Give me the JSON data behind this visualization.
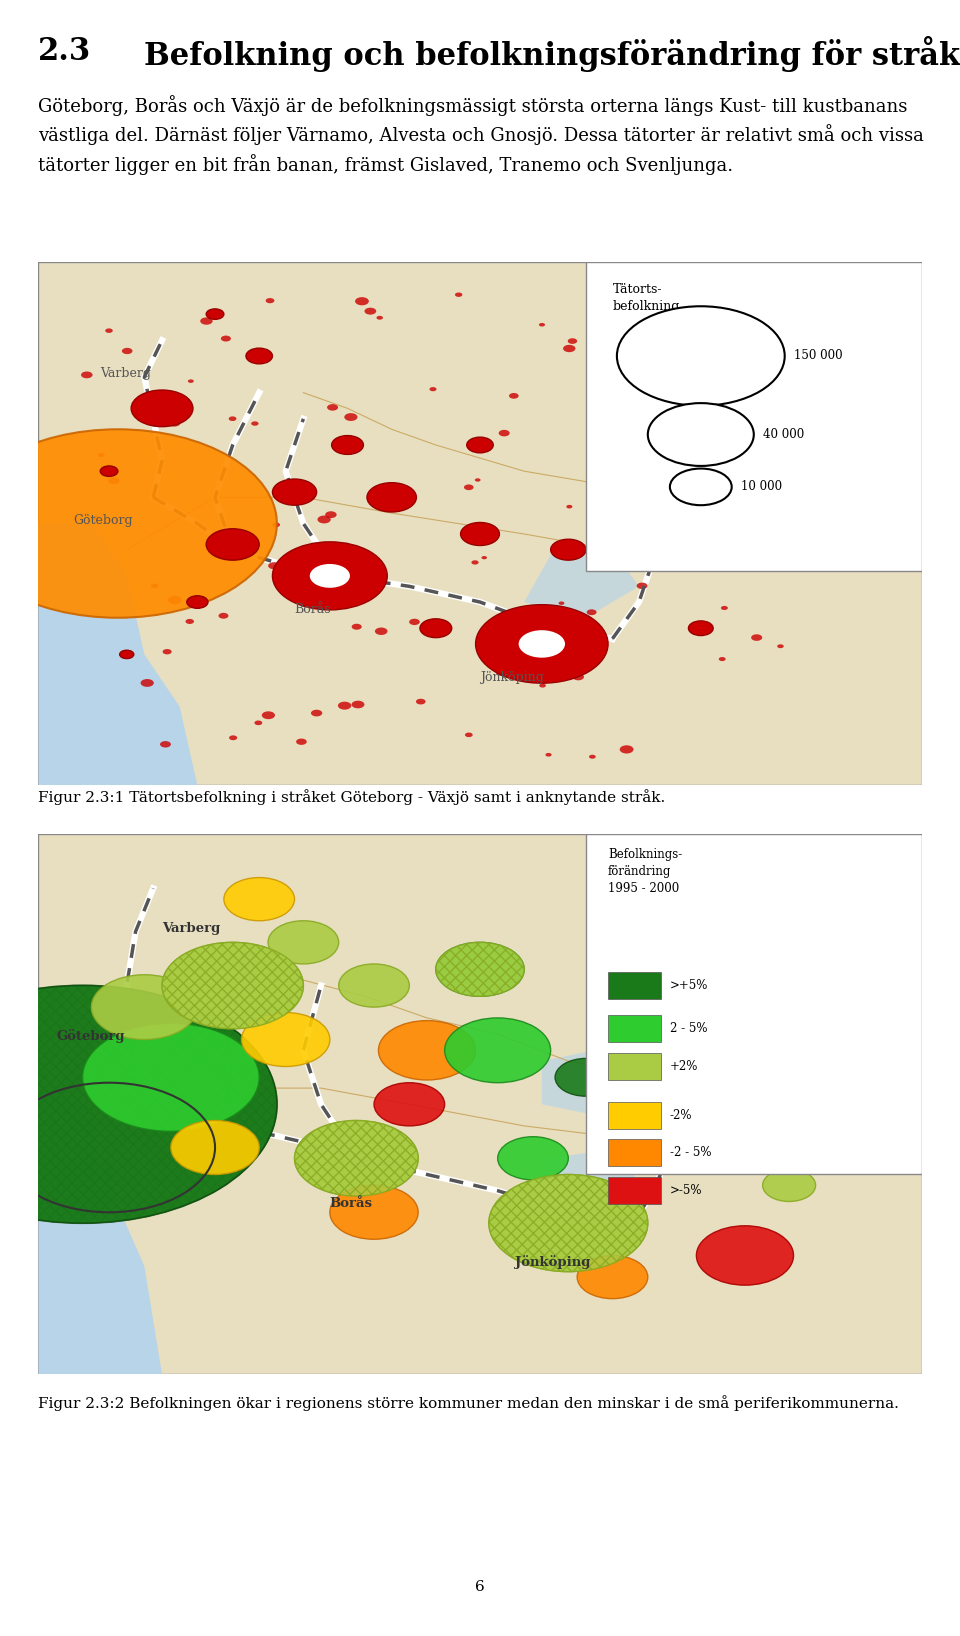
{
  "page_bg": "#ffffff",
  "section_number": "2.3",
  "section_title": "Befolkning och befolkningsförändring för stråket",
  "body_text": "Göteborg, Borås och Växjö är de befolkningsmässigt största orterna längs Kust- till kustbanans västliga del. Därnäst följer Värnamo, Alvesta och Gnosjö. Dessa tätorter är relativt små och vissa tätorter ligger en bit från banan, främst Gislaved, Tranemo och Svenljunga.",
  "map1_bg": "#e8dfc0",
  "map1_legend_labels": [
    "150 000",
    "40 000",
    "10 000"
  ],
  "map1_circle_color": "#cc0000",
  "map1_goteborg_color": "#ff8800",
  "map1_caption": "Figur 2.3:1 Tätortsbefolkning i stråket Göteborg - Växjö samt i anknytande stråk.",
  "map2_bg": "#e8dfc0",
  "map2_legend_title": "Befolknings-\nförändring\n1995 - 2000",
  "map2_legend_colors": [
    "#1a7a1a",
    "#2ecc2e",
    "#aacc44",
    "#ffcc00",
    "#ff8800",
    "#dd1111"
  ],
  "map2_legend_labels": [
    ">+5%",
    "2 - 5%",
    "+2%",
    "-2%",
    "-2 - 5%",
    ">-5%"
  ],
  "map2_caption": "Figur 2.3:2 Befolkningen ökar i regionens större kommuner medan den minskar i de små periferikommunerna.",
  "page_number": "6",
  "title_fontsize": 22,
  "body_fontsize": 13,
  "caption_fontsize": 11
}
